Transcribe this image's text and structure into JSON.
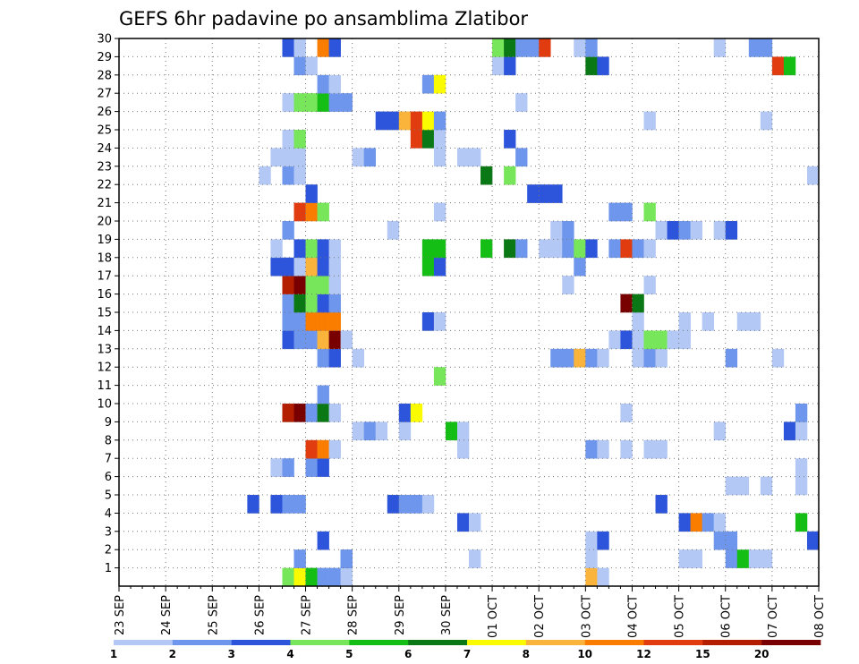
{
  "chart_data": {
    "type": "heatmap",
    "title": "GEFS 6hr padavine po ansamblima Zlatibor",
    "x_ticks": [
      "23 SEP",
      "24 SEP",
      "25 SEP",
      "26 SEP",
      "27 SEP",
      "28 SEP",
      "29 SEP",
      "30 SEP",
      "01 OCT",
      "02 OCT",
      "03 OCT",
      "04 OCT",
      "05 OCT",
      "06 OCT",
      "07 OCT",
      "08 OCT"
    ],
    "y_ticks": [
      "1",
      "2",
      "3",
      "4",
      "5",
      "6",
      "7",
      "8",
      "9",
      "10",
      "11",
      "12",
      "13",
      "14",
      "15",
      "16",
      "17",
      "18",
      "19",
      "20",
      "21",
      "22",
      "23",
      "24",
      "25",
      "26",
      "27",
      "28",
      "29",
      "30"
    ],
    "y_range": [
      0,
      30
    ],
    "time_steps": 60,
    "steps_per_day": 4,
    "grid": true,
    "colorbar": {
      "labels": [
        "1",
        "2",
        "3",
        "4",
        "5",
        "6",
        "7",
        "8",
        "10",
        "12",
        "15",
        "20"
      ],
      "colors": [
        "#b4c8f5",
        "#6e96ec",
        "#2d55dc",
        "#78e65a",
        "#14be14",
        "#0a7814",
        "#fafa00",
        "#fab43c",
        "#fa7d00",
        "#e13c0f",
        "#b41e00",
        "#780000"
      ]
    },
    "cells": [
      [
        14,
        0,
        3
      ],
      [
        15,
        0,
        6
      ],
      [
        16,
        0,
        4
      ],
      [
        17,
        0,
        1
      ],
      [
        18,
        0,
        1
      ],
      [
        19,
        0,
        0
      ],
      [
        40,
        0,
        7
      ],
      [
        41,
        0,
        0
      ],
      [
        15,
        1,
        0
      ],
      [
        15,
        1,
        1
      ],
      [
        19,
        1,
        2
      ],
      [
        19,
        1,
        1
      ],
      [
        30,
        1,
        0
      ],
      [
        40,
        1,
        0
      ],
      [
        48,
        1,
        0
      ],
      [
        49,
        1,
        0
      ],
      [
        52,
        1,
        1
      ],
      [
        53,
        1,
        4
      ],
      [
        54,
        1,
        0
      ],
      [
        55,
        1,
        0
      ],
      [
        17,
        2,
        2
      ],
      [
        40,
        2,
        0
      ],
      [
        41,
        2,
        2
      ],
      [
        51,
        2,
        1
      ],
      [
        52,
        2,
        1
      ],
      [
        59,
        2,
        2
      ],
      [
        29,
        3,
        2
      ],
      [
        30,
        3,
        0
      ],
      [
        48,
        3,
        2
      ],
      [
        49,
        3,
        8
      ],
      [
        50,
        3,
        1
      ],
      [
        51,
        3,
        0
      ],
      [
        58,
        3,
        4
      ],
      [
        11,
        4,
        2
      ],
      [
        13,
        4,
        2
      ],
      [
        14,
        4,
        1
      ],
      [
        15,
        4,
        1
      ],
      [
        23,
        4,
        2
      ],
      [
        24,
        4,
        1
      ],
      [
        25,
        4,
        1
      ],
      [
        26,
        4,
        0
      ],
      [
        46,
        4,
        2
      ],
      [
        52,
        5,
        0
      ],
      [
        53,
        5,
        0
      ],
      [
        55,
        5,
        0
      ],
      [
        58,
        5,
        0
      ],
      [
        13,
        6,
        0
      ],
      [
        14,
        6,
        1
      ],
      [
        16,
        6,
        1
      ],
      [
        17,
        6,
        2
      ],
      [
        58,
        6,
        0
      ],
      [
        16,
        7,
        9
      ],
      [
        17,
        7,
        8
      ],
      [
        18,
        7,
        0
      ],
      [
        29,
        7,
        0
      ],
      [
        40,
        7,
        1
      ],
      [
        41,
        7,
        0
      ],
      [
        43,
        7,
        0
      ],
      [
        45,
        7,
        0
      ],
      [
        46,
        7,
        0
      ],
      [
        20,
        8,
        0
      ],
      [
        21,
        8,
        1
      ],
      [
        22,
        8,
        0
      ],
      [
        24,
        8,
        0
      ],
      [
        28,
        8,
        4
      ],
      [
        29,
        8,
        0
      ],
      [
        51,
        8,
        0
      ],
      [
        57,
        8,
        2
      ],
      [
        58,
        8,
        0
      ],
      [
        14,
        9,
        10
      ],
      [
        15,
        9,
        11
      ],
      [
        16,
        9,
        1
      ],
      [
        17,
        9,
        5
      ],
      [
        18,
        9,
        0
      ],
      [
        24,
        9,
        2
      ],
      [
        25,
        9,
        6
      ],
      [
        43,
        9,
        0
      ],
      [
        58,
        9,
        1
      ],
      [
        17,
        10,
        1
      ],
      [
        27,
        11,
        3
      ],
      [
        17,
        12,
        1
      ],
      [
        18,
        12,
        2
      ],
      [
        20,
        12,
        0
      ],
      [
        37,
        12,
        1
      ],
      [
        38,
        12,
        1
      ],
      [
        39,
        12,
        7
      ],
      [
        40,
        12,
        1
      ],
      [
        41,
        12,
        0
      ],
      [
        44,
        12,
        0
      ],
      [
        45,
        12,
        1
      ],
      [
        46,
        12,
        0
      ],
      [
        52,
        12,
        1
      ],
      [
        56,
        12,
        0
      ],
      [
        14,
        13,
        2
      ],
      [
        15,
        13,
        1
      ],
      [
        16,
        13,
        1
      ],
      [
        17,
        13,
        7
      ],
      [
        18,
        13,
        11
      ],
      [
        19,
        13,
        0
      ],
      [
        42,
        13,
        0
      ],
      [
        43,
        13,
        2
      ],
      [
        44,
        13,
        0
      ],
      [
        45,
        13,
        3
      ],
      [
        46,
        13,
        3
      ],
      [
        47,
        13,
        0
      ],
      [
        48,
        13,
        0
      ],
      [
        14,
        14,
        1
      ],
      [
        15,
        14,
        1
      ],
      [
        16,
        14,
        8
      ],
      [
        17,
        14,
        8
      ],
      [
        18,
        14,
        8
      ],
      [
        26,
        14,
        2
      ],
      [
        27,
        14,
        0
      ],
      [
        44,
        14,
        0
      ],
      [
        48,
        14,
        0
      ],
      [
        50,
        14,
        0
      ],
      [
        53,
        14,
        0
      ],
      [
        54,
        14,
        0
      ],
      [
        14,
        15,
        1
      ],
      [
        15,
        15,
        5
      ],
      [
        16,
        15,
        3
      ],
      [
        17,
        15,
        2
      ],
      [
        18,
        15,
        1
      ],
      [
        43,
        15,
        11
      ],
      [
        44,
        15,
        5
      ],
      [
        14,
        16,
        10
      ],
      [
        15,
        16,
        11
      ],
      [
        16,
        16,
        3
      ],
      [
        17,
        16,
        3
      ],
      [
        18,
        16,
        0
      ],
      [
        38,
        16,
        0
      ],
      [
        45,
        16,
        0
      ],
      [
        13,
        17,
        2
      ],
      [
        14,
        17,
        2
      ],
      [
        15,
        17,
        0
      ],
      [
        16,
        17,
        7
      ],
      [
        17,
        17,
        2
      ],
      [
        18,
        17,
        0
      ],
      [
        26,
        17,
        4
      ],
      [
        27,
        17,
        2
      ],
      [
        39,
        17,
        1
      ],
      [
        13,
        18,
        0
      ],
      [
        15,
        18,
        2
      ],
      [
        16,
        18,
        3
      ],
      [
        17,
        18,
        2
      ],
      [
        18,
        18,
        0
      ],
      [
        26,
        18,
        4
      ],
      [
        27,
        18,
        4
      ],
      [
        31,
        18,
        4
      ],
      [
        33,
        18,
        5
      ],
      [
        34,
        18,
        1
      ],
      [
        36,
        18,
        0
      ],
      [
        37,
        18,
        0
      ],
      [
        38,
        18,
        1
      ],
      [
        39,
        18,
        3
      ],
      [
        40,
        18,
        2
      ],
      [
        42,
        18,
        1
      ],
      [
        43,
        18,
        9
      ],
      [
        44,
        18,
        1
      ],
      [
        45,
        18,
        0
      ],
      [
        14,
        19,
        1
      ],
      [
        23,
        19,
        0
      ],
      [
        37,
        19,
        0
      ],
      [
        38,
        19,
        1
      ],
      [
        46,
        19,
        0
      ],
      [
        47,
        19,
        2
      ],
      [
        48,
        19,
        1
      ],
      [
        49,
        19,
        0
      ],
      [
        51,
        19,
        0
      ],
      [
        52,
        19,
        2
      ],
      [
        15,
        20,
        9
      ],
      [
        16,
        20,
        8
      ],
      [
        17,
        20,
        3
      ],
      [
        27,
        20,
        0
      ],
      [
        42,
        20,
        1
      ],
      [
        43,
        20,
        1
      ],
      [
        45,
        20,
        3
      ],
      [
        16,
        21,
        2
      ],
      [
        35,
        21,
        2
      ],
      [
        36,
        21,
        2
      ],
      [
        37,
        21,
        2
      ],
      [
        12,
        22,
        0
      ],
      [
        14,
        22,
        1
      ],
      [
        15,
        22,
        0
      ],
      [
        31,
        22,
        5
      ],
      [
        33,
        22,
        3
      ],
      [
        59,
        22,
        0
      ],
      [
        13,
        23,
        0
      ],
      [
        14,
        23,
        0
      ],
      [
        15,
        23,
        0
      ],
      [
        20,
        23,
        0
      ],
      [
        21,
        23,
        1
      ],
      [
        27,
        23,
        0
      ],
      [
        29,
        23,
        0
      ],
      [
        30,
        23,
        0
      ],
      [
        34,
        23,
        1
      ],
      [
        14,
        24,
        0
      ],
      [
        15,
        24,
        3
      ],
      [
        25,
        24,
        9
      ],
      [
        26,
        24,
        5
      ],
      [
        27,
        24,
        0
      ],
      [
        33,
        24,
        2
      ],
      [
        22,
        25,
        2
      ],
      [
        23,
        25,
        2
      ],
      [
        24,
        25,
        7
      ],
      [
        25,
        25,
        9
      ],
      [
        26,
        25,
        6
      ],
      [
        27,
        25,
        1
      ],
      [
        45,
        25,
        0
      ],
      [
        55,
        25,
        0
      ],
      [
        14,
        26,
        0
      ],
      [
        15,
        26,
        3
      ],
      [
        16,
        26,
        3
      ],
      [
        17,
        26,
        4
      ],
      [
        18,
        26,
        1
      ],
      [
        19,
        26,
        1
      ],
      [
        34,
        26,
        0
      ],
      [
        17,
        27,
        1
      ],
      [
        18,
        27,
        0
      ],
      [
        26,
        27,
        1
      ],
      [
        27,
        27,
        6
      ],
      [
        15,
        28,
        1
      ],
      [
        16,
        28,
        0
      ],
      [
        32,
        28,
        0
      ],
      [
        33,
        28,
        2
      ],
      [
        40,
        28,
        5
      ],
      [
        41,
        28,
        2
      ],
      [
        56,
        28,
        9
      ],
      [
        57,
        28,
        4
      ],
      [
        14,
        29,
        2
      ],
      [
        15,
        29,
        0
      ],
      [
        17,
        29,
        8
      ],
      [
        18,
        29,
        2
      ],
      [
        32,
        29,
        3
      ],
      [
        33,
        29,
        5
      ],
      [
        34,
        29,
        1
      ],
      [
        35,
        29,
        1
      ],
      [
        36,
        29,
        9
      ],
      [
        39,
        29,
        0
      ],
      [
        40,
        29,
        1
      ],
      [
        51,
        29,
        0
      ],
      [
        54,
        29,
        1
      ],
      [
        55,
        29,
        1
      ]
    ]
  }
}
